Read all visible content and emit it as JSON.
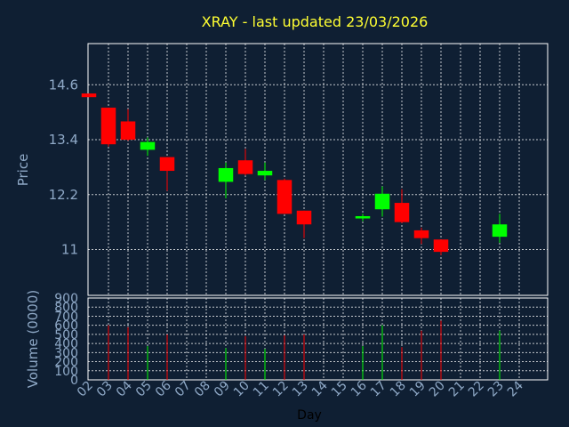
{
  "chart_data": {
    "type": "candlestick",
    "title": "XRAY - last updated 23/03/2026",
    "xlabel": "Day",
    "ylabel_price": "Price",
    "ylabel_volume": "Volume (0000)",
    "x_ticks": [
      "02",
      "03",
      "04",
      "05",
      "06",
      "07",
      "08",
      "09",
      "10",
      "11",
      "12",
      "13",
      "14",
      "15",
      "16",
      "17",
      "18",
      "19",
      "20",
      "21",
      "22",
      "23",
      "24"
    ],
    "price_ticks": [
      "14.6",
      "13.4",
      "12.2",
      "11"
    ],
    "price_tick_values": [
      14.6,
      13.4,
      12.2,
      11.0
    ],
    "price_ylim": [
      10.0,
      15.5
    ],
    "volume_ticks": [
      "900",
      "800",
      "700",
      "600",
      "500",
      "400",
      "300",
      "200",
      "100",
      "0"
    ],
    "volume_tick_values": [
      900,
      800,
      700,
      600,
      500,
      400,
      300,
      200,
      100,
      0
    ],
    "volume_ylim": [
      0,
      900
    ],
    "candles": [
      {
        "day": "02",
        "open": 14.41,
        "high": 14.41,
        "low": 14.33,
        "close": 14.33,
        "volume": 0
      },
      {
        "day": "03",
        "open": 14.1,
        "high": 14.1,
        "low": 13.25,
        "close": 13.3,
        "volume": 600
      },
      {
        "day": "04",
        "open": 13.8,
        "high": 14.07,
        "low": 13.38,
        "close": 13.4,
        "volume": 580
      },
      {
        "day": "05",
        "open": 13.18,
        "high": 13.45,
        "low": 13.05,
        "close": 13.35,
        "volume": 370
      },
      {
        "day": "06",
        "open": 13.02,
        "high": 13.02,
        "low": 12.28,
        "close": 12.72,
        "volume": 500
      },
      {
        "day": "09",
        "open": 12.48,
        "high": 12.9,
        "low": 12.12,
        "close": 12.78,
        "volume": 350
      },
      {
        "day": "10",
        "open": 12.95,
        "high": 13.2,
        "low": 12.62,
        "close": 12.65,
        "volume": 480
      },
      {
        "day": "11",
        "open": 12.62,
        "high": 12.9,
        "low": 12.52,
        "close": 12.72,
        "volume": 340
      },
      {
        "day": "12",
        "open": 12.52,
        "high": 12.55,
        "low": 11.78,
        "close": 11.78,
        "volume": 490
      },
      {
        "day": "13",
        "open": 11.85,
        "high": 11.85,
        "low": 11.25,
        "close": 11.55,
        "volume": 500
      },
      {
        "day": "16",
        "open": 11.68,
        "high": 11.78,
        "low": 11.62,
        "close": 11.73,
        "volume": 370
      },
      {
        "day": "17",
        "open": 11.88,
        "high": 12.38,
        "low": 11.72,
        "close": 12.22,
        "volume": 600
      },
      {
        "day": "18",
        "open": 12.02,
        "high": 12.32,
        "low": 11.58,
        "close": 11.6,
        "volume": 360
      },
      {
        "day": "19",
        "open": 11.42,
        "high": 11.48,
        "low": 11.12,
        "close": 11.25,
        "volume": 540
      },
      {
        "day": "20",
        "open": 11.22,
        "high": 11.22,
        "low": 10.88,
        "close": 10.95,
        "volume": 650
      },
      {
        "day": "23",
        "open": 11.28,
        "high": 11.78,
        "low": 11.15,
        "close": 11.55,
        "volume": 540
      }
    ],
    "grid": true,
    "legend": "none",
    "colors": {
      "background": "#0f1f33",
      "plot_border": "#ffffff",
      "grid": "#ffffff",
      "up": "#00ff00",
      "down": "#ff0000",
      "title": "#ffff33",
      "axis_text": "#8fa9c7",
      "xlabel": "#000000"
    }
  }
}
